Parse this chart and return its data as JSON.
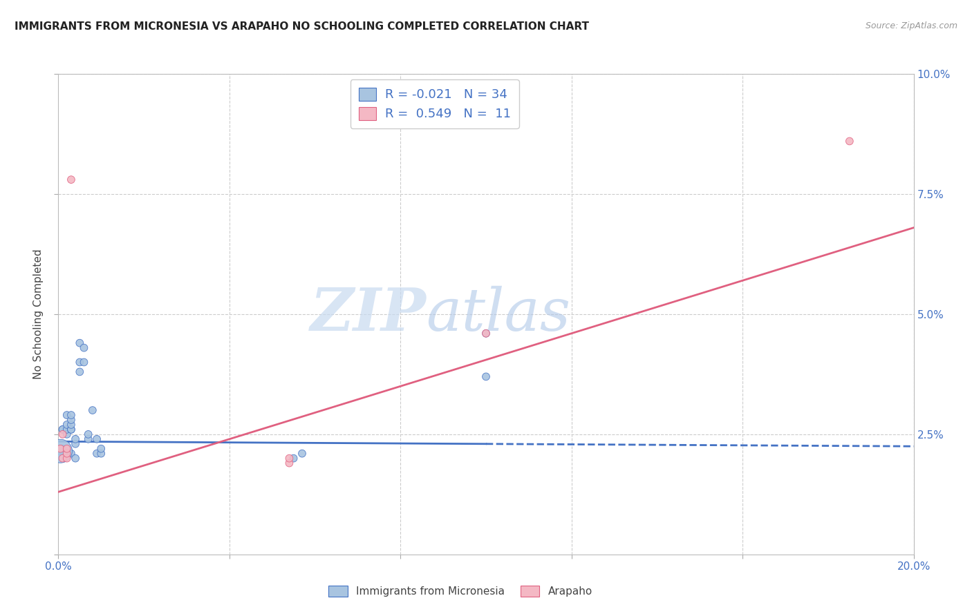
{
  "title": "IMMIGRANTS FROM MICRONESIA VS ARAPAHO NO SCHOOLING COMPLETED CORRELATION CHART",
  "source": "Source: ZipAtlas.com",
  "ylabel": "No Schooling Completed",
  "xlim": [
    0.0,
    0.2
  ],
  "ylim": [
    -0.005,
    0.105
  ],
  "plot_ylim": [
    0.0,
    0.1
  ],
  "xticks": [
    0.0,
    0.04,
    0.08,
    0.12,
    0.16,
    0.2
  ],
  "yticks": [
    0.0,
    0.025,
    0.05,
    0.075,
    0.1
  ],
  "xticklabels": [
    "0.0%",
    "",
    "",
    "",
    "",
    "20.0%"
  ],
  "yticklabels": [
    "",
    "2.5%",
    "5.0%",
    "7.5%",
    "10.0%"
  ],
  "blue_R": "-0.021",
  "blue_N": "34",
  "pink_R": "0.549",
  "pink_N": "11",
  "blue_color": "#a8c4e0",
  "pink_color": "#f4b8c4",
  "blue_line_color": "#4472c4",
  "pink_line_color": "#e06080",
  "watermark_zip": "ZIP",
  "watermark_atlas": "atlas",
  "legend_label_blue": "Immigrants from Micronesia",
  "legend_label_pink": "Arapaho",
  "blue_scatter_x": [
    0.0005,
    0.001,
    0.001,
    0.001,
    0.002,
    0.002,
    0.002,
    0.002,
    0.003,
    0.003,
    0.003,
    0.003,
    0.003,
    0.003,
    0.004,
    0.004,
    0.004,
    0.005,
    0.005,
    0.005,
    0.006,
    0.006,
    0.007,
    0.007,
    0.008,
    0.009,
    0.009,
    0.01,
    0.01,
    0.055,
    0.057,
    0.1,
    0.1,
    0.0005
  ],
  "blue_scatter_y": [
    0.0215,
    0.022,
    0.026,
    0.026,
    0.025,
    0.026,
    0.027,
    0.029,
    0.021,
    0.026,
    0.026,
    0.027,
    0.028,
    0.029,
    0.02,
    0.023,
    0.024,
    0.038,
    0.04,
    0.044,
    0.04,
    0.043,
    0.024,
    0.025,
    0.03,
    0.021,
    0.024,
    0.021,
    0.022,
    0.02,
    0.021,
    0.046,
    0.037,
    0.0215
  ],
  "blue_scatter_sizes": [
    60,
    60,
    60,
    60,
    60,
    60,
    60,
    60,
    60,
    60,
    60,
    60,
    60,
    60,
    60,
    60,
    60,
    60,
    60,
    60,
    60,
    60,
    60,
    60,
    60,
    60,
    60,
    60,
    60,
    60,
    60,
    60,
    60,
    600
  ],
  "pink_scatter_x": [
    0.0005,
    0.001,
    0.001,
    0.002,
    0.002,
    0.002,
    0.003,
    0.054,
    0.054,
    0.1,
    0.185
  ],
  "pink_scatter_y": [
    0.022,
    0.02,
    0.025,
    0.02,
    0.021,
    0.022,
    0.078,
    0.019,
    0.02,
    0.046,
    0.086
  ],
  "pink_scatter_sizes": [
    60,
    60,
    60,
    60,
    60,
    60,
    60,
    60,
    60,
    60,
    60
  ],
  "blue_trend_x": [
    0.0,
    0.2
  ],
  "blue_trend_y": [
    0.0235,
    0.0225
  ],
  "blue_trend_solid_end": 0.1,
  "pink_trend_x": [
    0.0,
    0.2
  ],
  "pink_trend_y": [
    0.013,
    0.068
  ],
  "grid_color": "#cccccc",
  "bg_color": "#ffffff"
}
